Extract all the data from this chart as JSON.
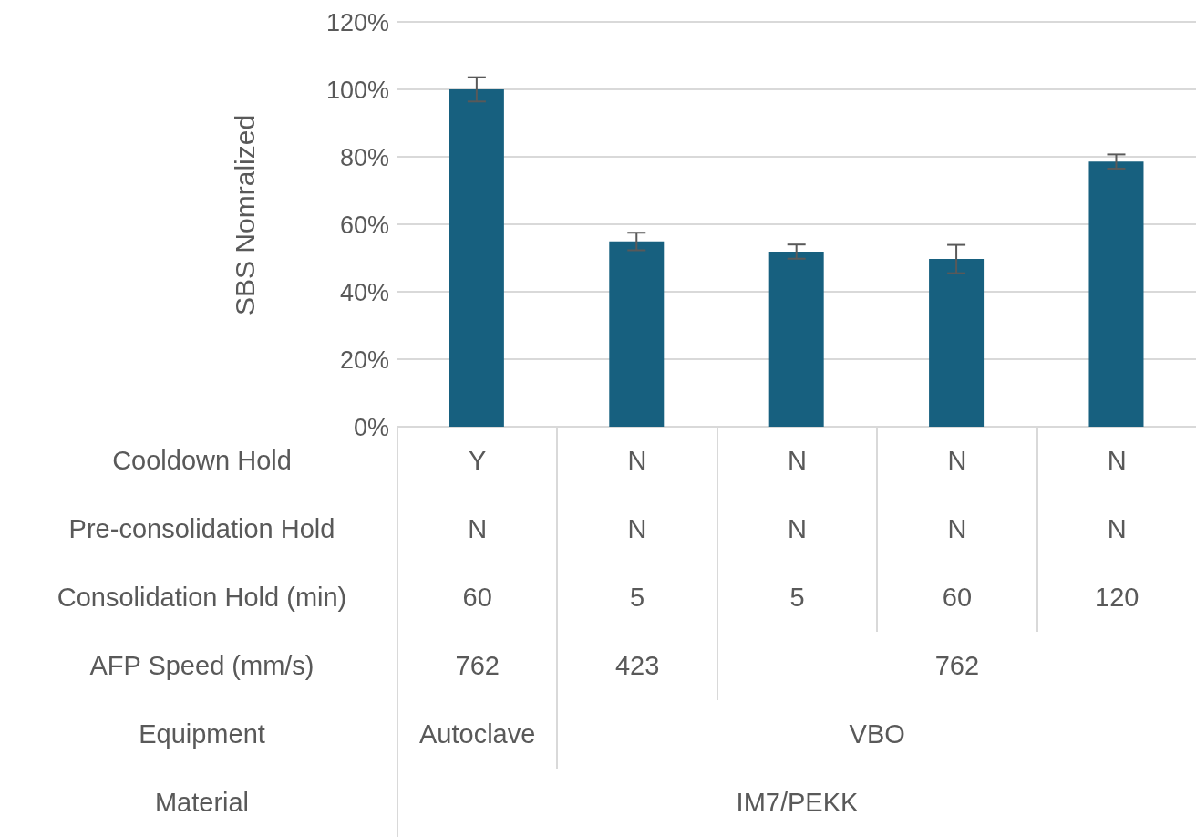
{
  "chart_data": {
    "type": "bar",
    "ylabel": "SBS Nomralized",
    "categories": [
      "Y",
      "N",
      "N",
      "N",
      "N"
    ],
    "values": [
      100,
      54.9,
      51.9,
      49.7,
      78.6
    ],
    "errors": [
      3.6,
      2.6,
      2.1,
      4.2,
      2.1
    ],
    "color": "#17607f",
    "ylim": [
      0,
      120
    ],
    "yticks": [
      {
        "value": 0,
        "label": "0%"
      },
      {
        "value": 20,
        "label": "20%"
      },
      {
        "value": 40,
        "label": "40%"
      },
      {
        "value": 60,
        "label": "60%"
      },
      {
        "value": 80,
        "label": "80%"
      },
      {
        "value": 100,
        "label": "100%"
      },
      {
        "value": 120,
        "label": "120%"
      }
    ],
    "grid": "y",
    "annotations": [
      "Cooldown Hold",
      "Pre-consolidation Hold",
      "Consolidation Hold (min)",
      "AFP Speed (mm/s)",
      "Equipment",
      "Material",
      "N",
      "N",
      "N",
      "N",
      "N",
      "60",
      "5",
      "5",
      "60",
      "120",
      "762",
      "423",
      "762",
      "Autoclave",
      "VBO",
      "IM7/PEKK"
    ]
  }
}
